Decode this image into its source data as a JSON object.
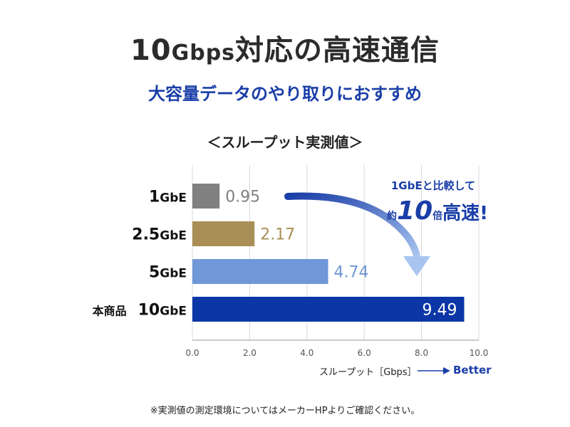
{
  "header": {
    "title_num": "10",
    "title_unit": "Gbps",
    "title_rest": "対応の高速通信",
    "subtitle": "大容量データのやり取りにおすすめ"
  },
  "chart_title": "＜スループット実測値＞",
  "chart_data": {
    "type": "bar",
    "orientation": "horizontal",
    "categories": [
      "1GbE",
      "2.5GbE",
      "5GbE",
      "本商品 10GbE"
    ],
    "values": [
      0.95,
      2.17,
      4.74,
      9.49
    ],
    "value_labels": [
      "0.95",
      "2.17",
      "4.74",
      "9.49"
    ],
    "bar_colors": [
      "#808080",
      "#a98f56",
      "#7097d8",
      "#0c36a6"
    ],
    "xlim": [
      0,
      10
    ],
    "xticks": [
      "0.0",
      "2.0",
      "4.0",
      "6.0",
      "8.0",
      "10.0"
    ],
    "xlabel": "スループット［Gbps］",
    "grid": true,
    "legend": "none"
  },
  "better_label": "Better",
  "callout": {
    "line1": "1GbEと比較して",
    "pre": "約",
    "num": "10",
    "mul": "倍",
    "big": "高速!"
  },
  "note": "※実測値の測定環境についてはメーカーHPよりご確認ください。",
  "colors": {
    "accent": "#1a3ea8",
    "arrow": "#3e70c8",
    "grid": "#d8d8d8"
  }
}
